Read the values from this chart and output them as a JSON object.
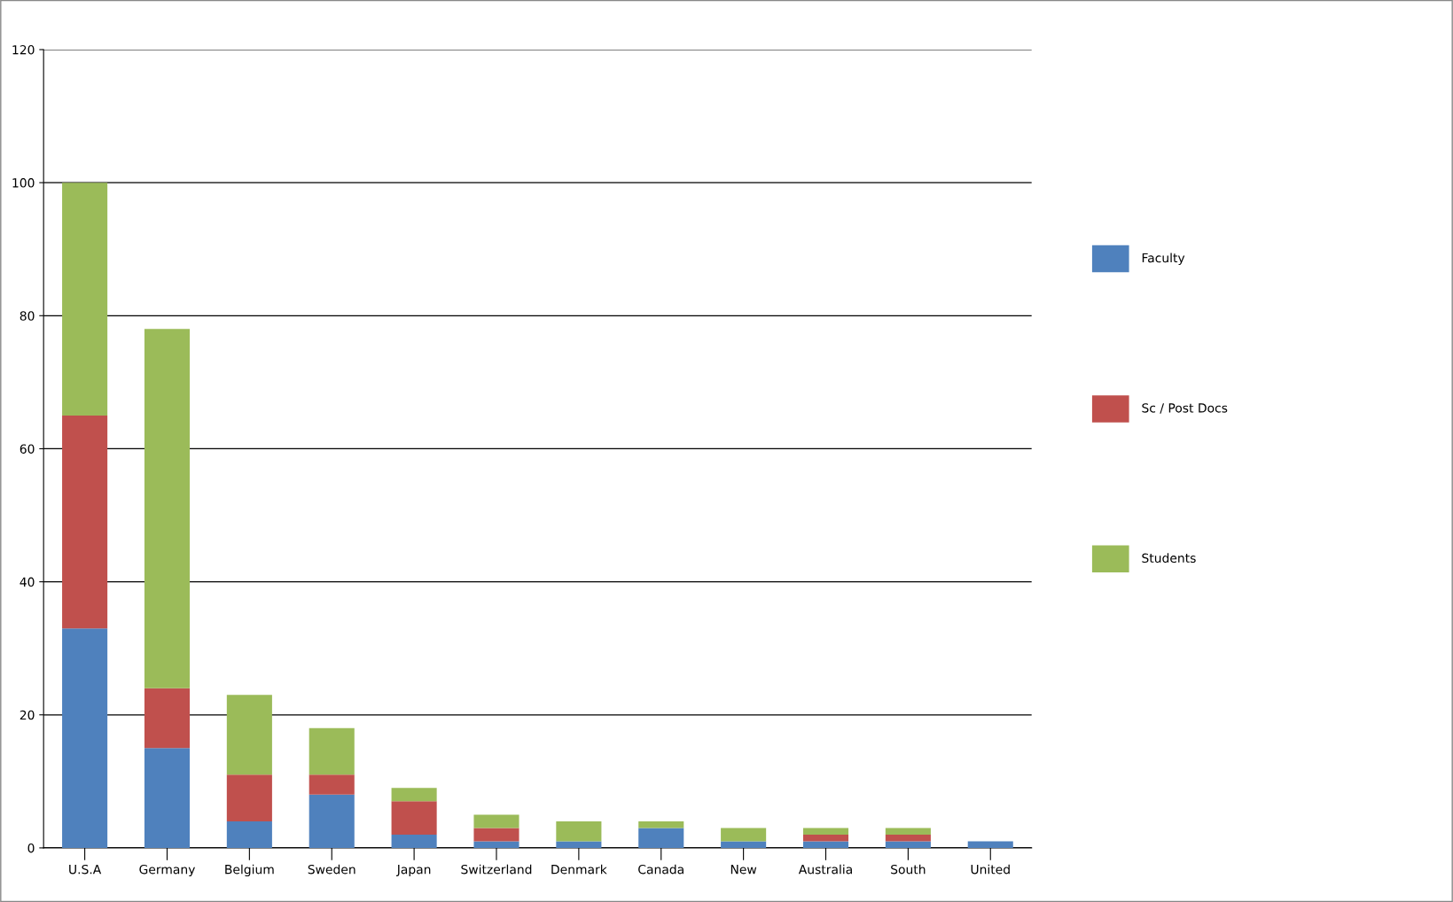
{
  "chart_data": {
    "type": "bar",
    "stacked": true,
    "categories": [
      "U.S.A",
      "Germany",
      "Belgium",
      "Sweden",
      "Japan",
      "Switzerland",
      "Denmark",
      "Canada",
      "New",
      "Australia",
      "South",
      "United"
    ],
    "series": [
      {
        "name": "Faculty",
        "color": "#4f81bd",
        "values": [
          33,
          15,
          4,
          8,
          2,
          1,
          1,
          3,
          1,
          1,
          1,
          1
        ]
      },
      {
        "name": "Sc / Post Docs",
        "color": "#c0504d",
        "values": [
          32,
          9,
          7,
          3,
          5,
          2,
          0,
          0,
          0,
          1,
          1,
          0
        ]
      },
      {
        "name": "Students",
        "color": "#9bbb59",
        "values": [
          35,
          54,
          12,
          7,
          2,
          2,
          3,
          1,
          2,
          1,
          1,
          0
        ]
      }
    ],
    "ylim": [
      0,
      120
    ],
    "yticks": [
      0,
      20,
      40,
      60,
      80,
      100,
      120
    ],
    "grid": "y",
    "legend": "right"
  }
}
